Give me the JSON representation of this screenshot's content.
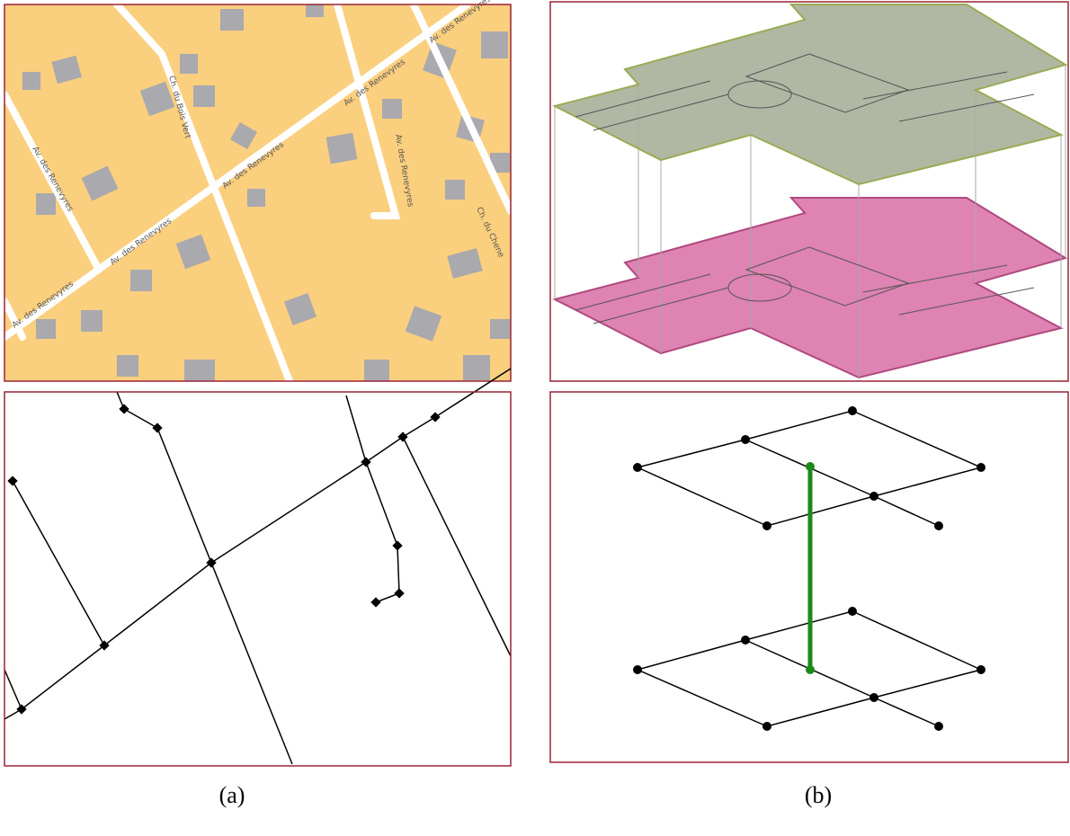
{
  "panel_a": {
    "label": "(a)",
    "streets": [
      "Ch. du Bois Vert",
      "Av. des Renevyres",
      "Av. des Renevyres",
      "Av. des Renevyres",
      "Av. des Renevyres",
      "Av. des Renevyres",
      "Av. des Renevyres",
      "Ch. du Chene"
    ]
  },
  "panel_b": {
    "label": "(b)"
  }
}
